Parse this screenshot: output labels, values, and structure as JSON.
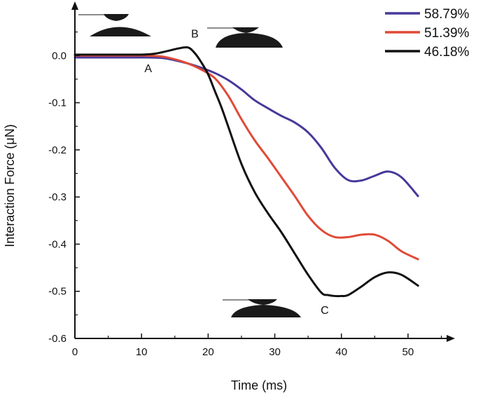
{
  "chart_data": {
    "type": "line",
    "title": "",
    "xlabel": "Time (ms)",
    "ylabel": "Interaction Force (μN)",
    "xlim": [
      0,
      56
    ],
    "ylim": [
      -0.6,
      0.1
    ],
    "xticks": [
      0,
      10,
      20,
      30,
      40,
      50
    ],
    "xtick_labels": [
      "0",
      "10",
      "20",
      "30",
      "40",
      "50"
    ],
    "yticks": [
      0.0,
      -0.1,
      -0.2,
      -0.3,
      -0.4,
      -0.5,
      -0.6
    ],
    "ytick_labels": [
      "0.0",
      "-0.1",
      "-0.2",
      "-0.3",
      "-0.4",
      "-0.5",
      "-0.6"
    ],
    "grid": false,
    "legend_position": "top-right",
    "series": [
      {
        "name": "58.79%",
        "color": "#46399a",
        "x": [
          0,
          5,
          10,
          13,
          15,
          17,
          19,
          21,
          23,
          25,
          27,
          29,
          31,
          33,
          35,
          37,
          39,
          41,
          43,
          45,
          47,
          49,
          51.5
        ],
        "y": [
          -0.004,
          -0.004,
          -0.004,
          -0.005,
          -0.01,
          -0.017,
          -0.026,
          -0.037,
          -0.052,
          -0.072,
          -0.095,
          -0.112,
          -0.128,
          -0.142,
          -0.163,
          -0.196,
          -0.238,
          -0.264,
          -0.265,
          -0.255,
          -0.246,
          -0.258,
          -0.298
        ]
      },
      {
        "name": "51.39%",
        "color": "#e04a37",
        "x": [
          0,
          5,
          10,
          13,
          15,
          17,
          19,
          21,
          23,
          25,
          27,
          29,
          31,
          33,
          35,
          37,
          39,
          41,
          43,
          45,
          47,
          49,
          51.5
        ],
        "y": [
          0.0,
          0.0,
          0.0,
          -0.002,
          -0.008,
          -0.017,
          -0.03,
          -0.048,
          -0.085,
          -0.135,
          -0.18,
          -0.218,
          -0.258,
          -0.298,
          -0.34,
          -0.37,
          -0.385,
          -0.385,
          -0.38,
          -0.38,
          -0.393,
          -0.415,
          -0.432
        ]
      },
      {
        "name": "46.18%",
        "color": "#111111",
        "x": [
          0,
          5,
          10,
          12,
          14,
          15.5,
          17,
          18,
          19,
          20,
          21,
          22,
          23,
          25,
          27,
          29,
          31,
          33,
          35,
          37,
          38,
          39,
          40,
          41,
          43,
          45,
          47,
          49,
          51.5
        ],
        "y": [
          0.002,
          0.002,
          0.002,
          0.004,
          0.01,
          0.015,
          0.017,
          0.005,
          -0.015,
          -0.04,
          -0.075,
          -0.11,
          -0.15,
          -0.23,
          -0.29,
          -0.335,
          -0.375,
          -0.42,
          -0.465,
          -0.503,
          -0.508,
          -0.51,
          -0.51,
          -0.508,
          -0.49,
          -0.47,
          -0.46,
          -0.465,
          -0.488
        ]
      }
    ],
    "annotations": [
      {
        "text": "A",
        "x": 11,
        "y": -0.035
      },
      {
        "text": "B",
        "x": 18,
        "y": 0.038
      },
      {
        "text": "C",
        "x": 37.5,
        "y": -0.548
      }
    ]
  }
}
